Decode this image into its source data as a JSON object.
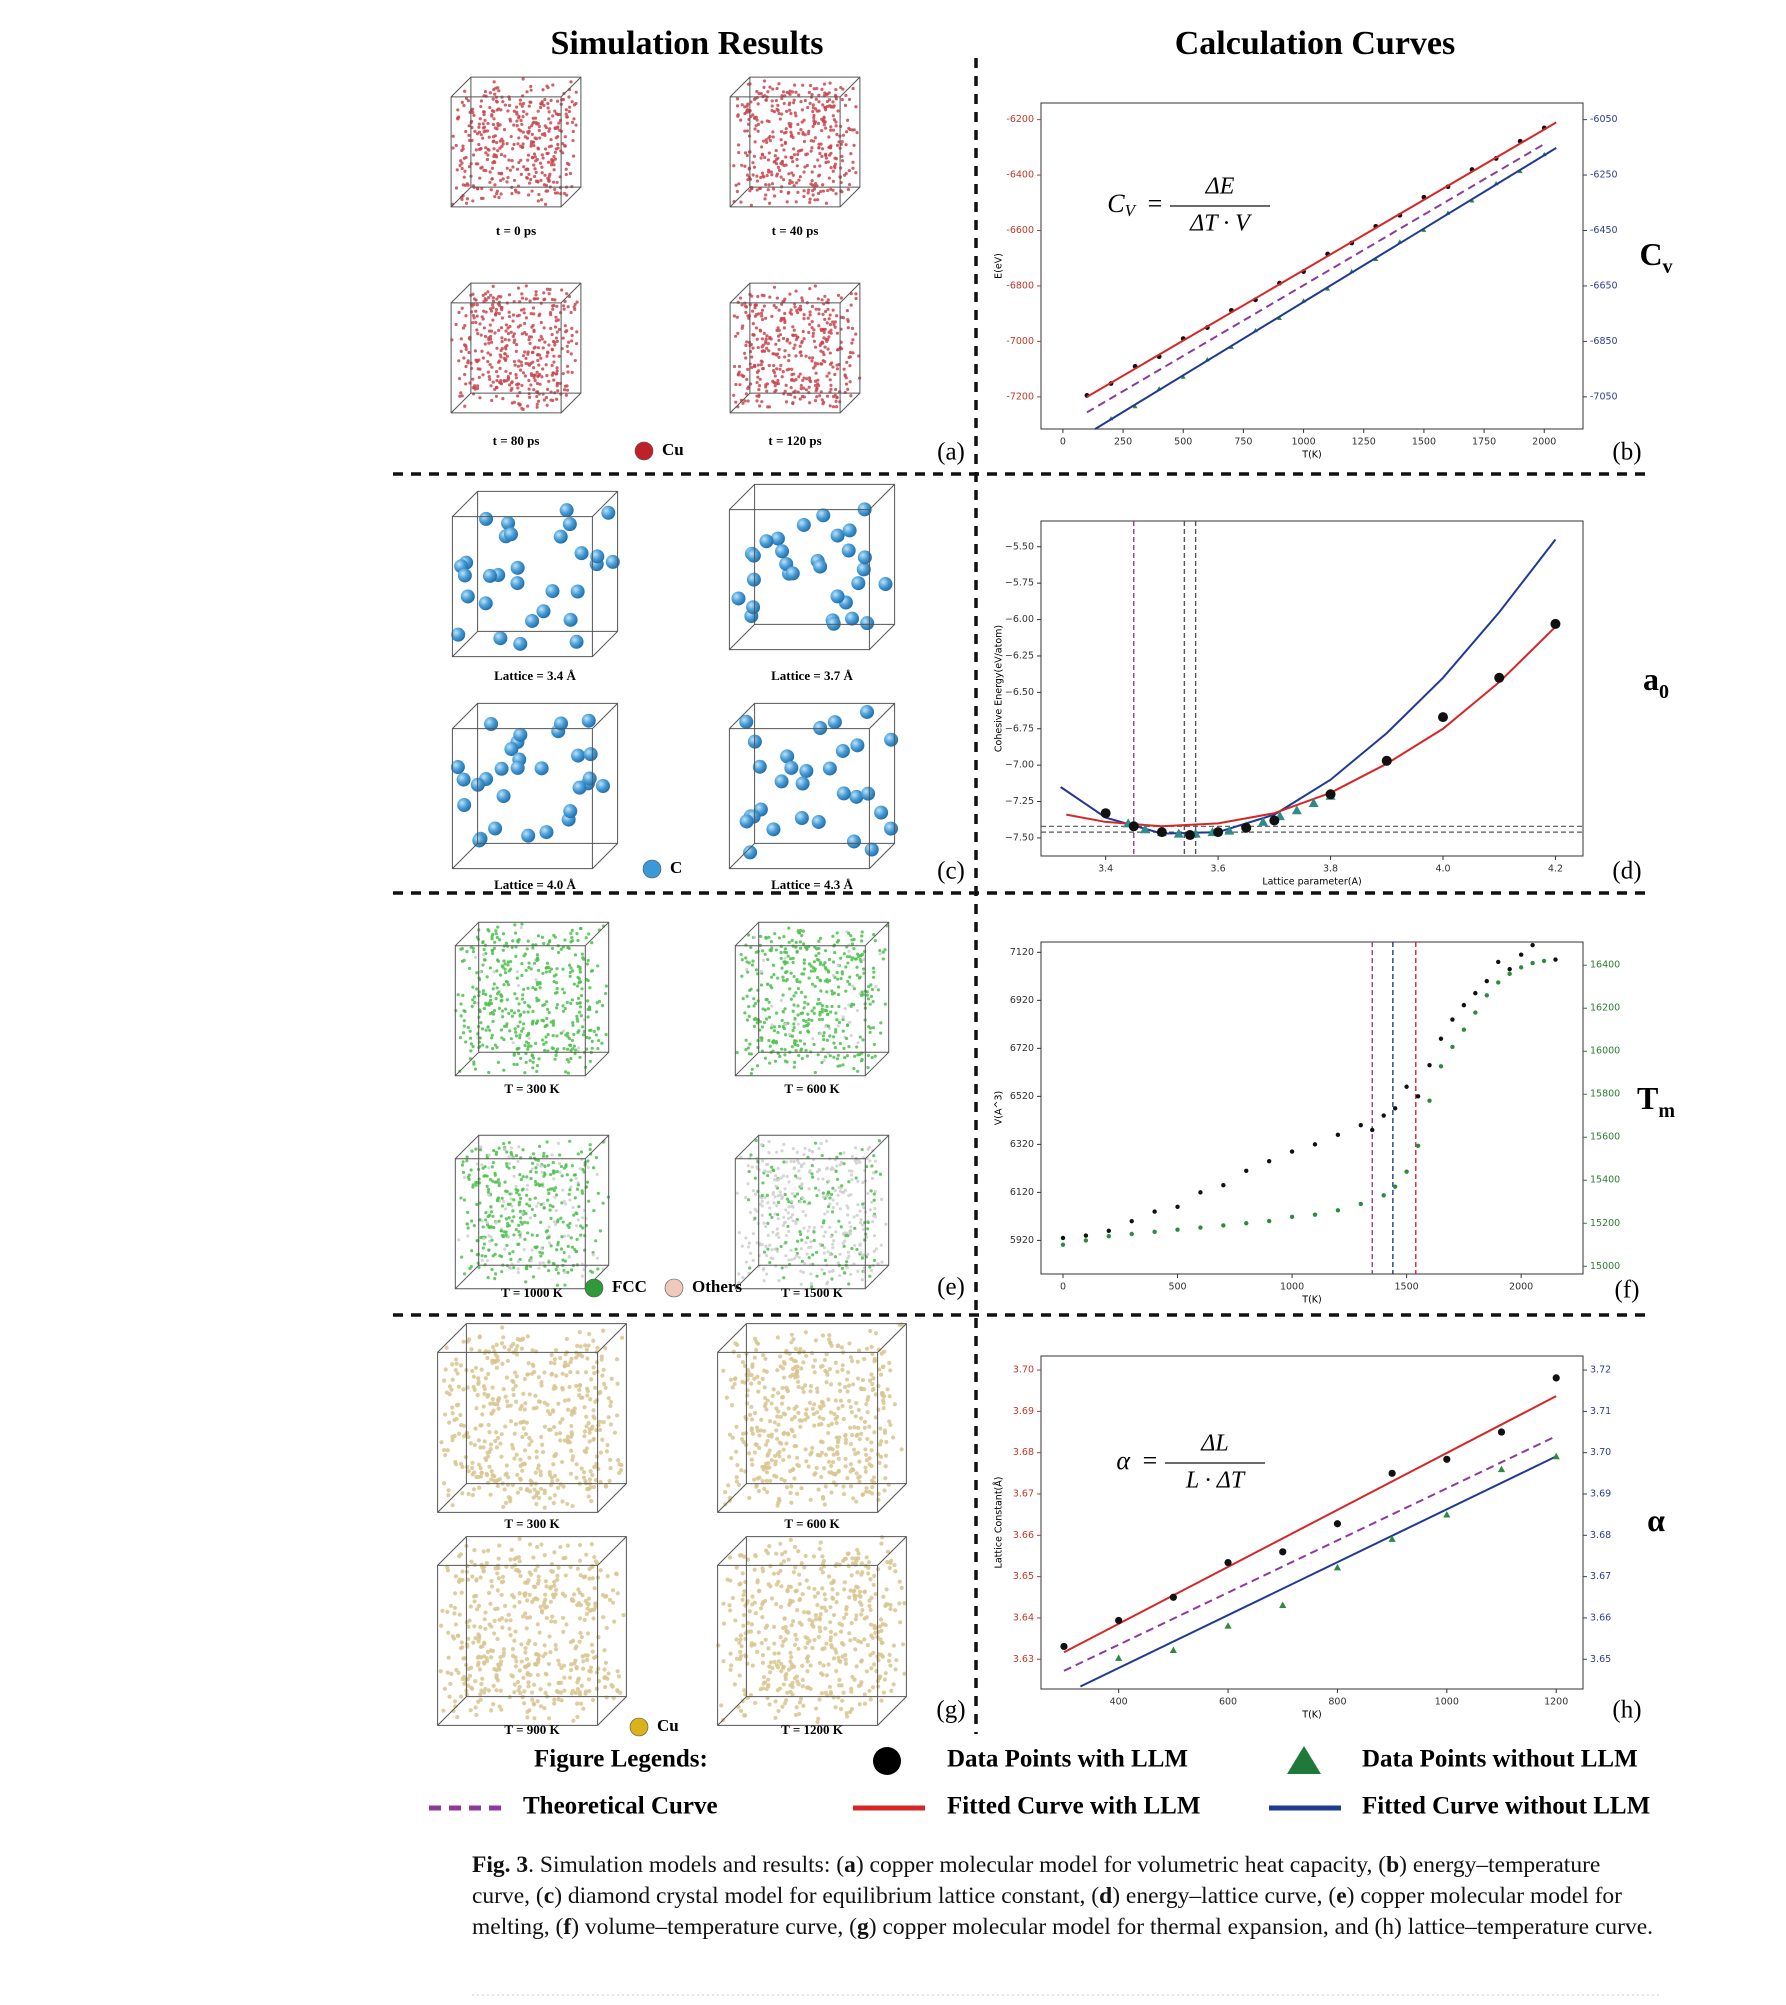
{
  "titles": {
    "left": "Simulation Results",
    "right": "Calculation Curves"
  },
  "sim_panels": [
    {
      "letter": "(a)",
      "color": "#c9474f",
      "cubes": [
        "t = 0 ps",
        "t = 40 ps",
        "t = 80 ps",
        "t = 120 ps"
      ],
      "legend": [
        {
          "label": "Cu",
          "color": "#c0202a"
        }
      ]
    },
    {
      "letter": "(c)",
      "color": "#4a9fd8",
      "cubes": [
        "Lattice = 3.4 Å",
        "Lattice = 3.7 Å",
        "Lattice = 4.0 Å",
        "Lattice = 4.3 Å"
      ],
      "legend": [
        {
          "label": "C",
          "color": "#3a9ad9"
        }
      ]
    },
    {
      "letter": "(e)",
      "color": "#4cbf4c",
      "cubes": [
        "T = 300 K",
        "T = 600 K",
        "T = 1000 K",
        "T = 1500 K"
      ],
      "legend": [
        {
          "label": "FCC",
          "color": "#2f9a3a"
        },
        {
          "label": "Others",
          "color": "#efc9bb"
        }
      ]
    },
    {
      "letter": "(g)",
      "color": "#d8c48e",
      "cubes": [
        "T = 300 K",
        "T = 600 K",
        "T = 900 K",
        "T = 1200 K"
      ],
      "legend": [
        {
          "label": "Cu",
          "color": "#d9b21c"
        }
      ]
    }
  ],
  "chart_data": [
    {
      "type": "scatter",
      "letter": "(b)",
      "xlabel": "T(K)",
      "ylabel": "E(eV)",
      "xlim": [
        -91,
        2161
      ],
      "ylim": [
        -7316,
        -6140
      ],
      "y2lim": [
        -7166,
        -5990
      ],
      "xticks": [
        0,
        250,
        500,
        750,
        1000,
        1250,
        1500,
        1750,
        2000
      ],
      "yticks": [
        -7200,
        -7000,
        -6800,
        -6600,
        -6400,
        -6200
      ],
      "y2ticks": [
        -7050,
        -6850,
        -6650,
        -6450,
        -6250,
        -6050
      ],
      "ytick_color": "#c0392b",
      "y2tick_color": "#2c3e8f",
      "formula": {
        "lhs": "C",
        "sub": "V",
        "num": "ΔE",
        "den": "ΔT · V"
      },
      "series": [
        {
          "marker": "dashed",
          "color": "#8e3a9d",
          "x": [
            100,
            2000
          ],
          "values": [
            -7256,
            -6288
          ]
        },
        {
          "marker": "circle",
          "color": "#111111",
          "x": [
            100,
            200,
            300,
            400,
            500,
            600,
            700,
            800,
            900,
            1000,
            1100,
            1200,
            1300,
            1400,
            1500,
            1600,
            1700,
            1800,
            1900,
            2000
          ],
          "values": [
            -7195,
            -7152,
            -7090,
            -7055,
            -6990,
            -6950,
            -6888,
            -6850,
            -6790,
            -6748,
            -6685,
            -6645,
            -6585,
            -6545,
            -6480,
            -6442,
            -6380,
            -6340,
            -6278,
            -6230
          ]
        },
        {
          "marker": "line",
          "color": "#d62728",
          "x": [
            100,
            2050
          ],
          "values": [
            -7200,
            -6210
          ]
        },
        {
          "marker": "triangle",
          "color": "#2e8b3e",
          "axis": "y2",
          "x": [
            200,
            300,
            400,
            500,
            600,
            700,
            800,
            900,
            1000,
            1100,
            1200,
            1300,
            1400,
            1500,
            1600,
            1700,
            1800,
            1900,
            2000
          ],
          "values": [
            -7128,
            -7084,
            -7020,
            -6978,
            -6915,
            -6870,
            -6810,
            -6766,
            -6703,
            -6660,
            -6597,
            -6553,
            -6490,
            -6448,
            -6386,
            -6342,
            -6280,
            -6236,
            -6175
          ]
        },
        {
          "marker": "line",
          "color": "#1f3a93",
          "axis": "y2",
          "x": [
            134,
            2050
          ],
          "values": [
            -7166,
            -6152
          ]
        }
      ]
    },
    {
      "type": "scatter",
      "letter": "(d)",
      "xlabel": "Lattice parameter(A)",
      "ylabel": "Cohesive Energy(eV/atom)",
      "xlim": [
        3.285,
        4.249
      ],
      "ylim": [
        -7.624,
        -5.323
      ],
      "xticks": [
        3.4,
        3.6,
        3.8,
        {
          "value": 4,
          "label": "4.0"
        },
        4.2
      ],
      "yticks": [
        {
          "value": -7.5,
          "label": "−7.50"
        },
        {
          "value": -7.25,
          "label": "−7.25"
        },
        {
          "value": -7,
          "label": "−7.00"
        },
        {
          "value": -6.75,
          "label": "−6.75"
        },
        {
          "value": -6.5,
          "label": "−6.50"
        },
        {
          "value": -6.25,
          "label": "−6.25"
        },
        {
          "value": -6,
          "label": "−6.00"
        },
        {
          "value": -5.75,
          "label": "−5.75"
        },
        {
          "value": -5.5,
          "label": "−5.50"
        }
      ],
      "vlines": [
        {
          "x": 3.45,
          "color": "#8e3a9d"
        },
        {
          "x": 3.54,
          "color": "#555555"
        },
        {
          "x": 3.56,
          "color": "#555555"
        }
      ],
      "hlines": [
        {
          "y": -7.42,
          "color": "#555555"
        },
        {
          "y": -7.46,
          "color": "#555555"
        }
      ],
      "series": [
        {
          "marker": "line",
          "color": "#1f3a93",
          "x": [
            3.32,
            3.4,
            3.5,
            3.6,
            3.7,
            3.8,
            3.9,
            4.0,
            4.1,
            4.2
          ],
          "values": [
            -7.15,
            -7.36,
            -7.47,
            -7.46,
            -7.34,
            -7.1,
            -6.78,
            -6.4,
            -5.95,
            -5.45
          ]
        },
        {
          "marker": "line",
          "color": "#d62728",
          "x": [
            3.33,
            3.4,
            3.5,
            3.6,
            3.7,
            3.8,
            3.9,
            4.0,
            4.1,
            4.2
          ],
          "values": [
            -7.34,
            -7.39,
            -7.42,
            -7.4,
            -7.33,
            -7.19,
            -6.99,
            -6.75,
            -6.43,
            -6.05
          ]
        },
        {
          "marker": "triangle",
          "color": "#2e8b8b",
          "x": [
            3.44,
            3.47,
            3.5,
            3.53,
            3.56,
            3.59,
            3.62,
            3.65,
            3.68,
            3.71,
            3.74,
            3.77,
            3.8
          ],
          "values": [
            -7.4,
            -7.44,
            -7.46,
            -7.47,
            -7.47,
            -7.46,
            -7.45,
            -7.42,
            -7.39,
            -7.35,
            -7.31,
            -7.26,
            -7.21
          ]
        },
        {
          "marker": "circle",
          "color": "#111111",
          "x": [
            3.4,
            3.45,
            3.5,
            3.55,
            3.6,
            3.65,
            3.7,
            3.8,
            3.9,
            4.0,
            4.1,
            4.2
          ],
          "values": [
            -7.33,
            -7.42,
            -7.46,
            -7.48,
            -7.46,
            -7.43,
            -7.38,
            -7.2,
            -6.97,
            -6.67,
            -6.4,
            -6.03
          ]
        }
      ]
    },
    {
      "type": "scatter",
      "letter": "(f)",
      "xlabel": "T(K)",
      "ylabel": "V(A^3)",
      "xlim": [
        -96,
        2270
      ],
      "ylim": [
        5780,
        7163
      ],
      "y2lim": [
        14964,
        16508
      ],
      "xticks": [
        0,
        500,
        1000,
        1500,
        2000
      ],
      "yticks": [
        5920,
        6120,
        6320,
        6520,
        6720,
        6920,
        7120
      ],
      "y2ticks": [
        15000,
        15200,
        15400,
        15600,
        15800,
        16000,
        16200,
        16400
      ],
      "y2tick_color": "#2e7d32",
      "vlines": [
        {
          "x": 1350,
          "color": "#8e3a9d"
        },
        {
          "x": 1440,
          "color": "#1f3a93"
        },
        {
          "x": 1540,
          "color": "#d62728"
        }
      ],
      "series": [
        {
          "marker": "circle",
          "color": "#111111",
          "x": [
            0,
            100,
            200,
            300,
            400,
            500,
            600,
            700,
            800,
            900,
            1000,
            1100,
            1200,
            1300,
            1350,
            1400,
            1450,
            1500,
            1550,
            1600,
            1650,
            1700,
            1750,
            1800,
            1850,
            1900,
            1950,
            2000,
            2050,
            2150
          ],
          "values": [
            5930,
            5940,
            5960,
            6000,
            6040,
            6060,
            6120,
            6150,
            6210,
            6250,
            6290,
            6320,
            6360,
            6400,
            6380,
            6440,
            6470,
            6560,
            6520,
            6650,
            6760,
            6840,
            6900,
            6950,
            7000,
            7080,
            7050,
            7110,
            7150,
            7090
          ]
        },
        {
          "marker": "circle",
          "color": "#2e8b3e",
          "axis": "y2",
          "x": [
            0,
            100,
            200,
            300,
            400,
            500,
            600,
            700,
            800,
            900,
            1000,
            1100,
            1200,
            1300,
            1400,
            1450,
            1500,
            1550,
            1600,
            1650,
            1700,
            1750,
            1800,
            1850,
            1900,
            1950,
            2000,
            2050,
            2100
          ],
          "values": [
            15100,
            15120,
            15140,
            15150,
            15160,
            15170,
            15180,
            15190,
            15200,
            15210,
            15230,
            15240,
            15260,
            15290,
            15330,
            15370,
            15440,
            15560,
            15770,
            15930,
            16020,
            16100,
            16180,
            16260,
            16320,
            16360,
            16390,
            16410,
            16420
          ]
        }
      ]
    },
    {
      "type": "scatter",
      "letter": "(h)",
      "xlabel": "T(K)",
      "ylabel": "Lattice Constant(Å)",
      "xlim": [
        258,
        1249
      ],
      "ylim": [
        3.6228,
        3.7034
      ],
      "y2lim": [
        3.6428,
        3.7234
      ],
      "xticks": [
        400,
        600,
        800,
        1000,
        1200
      ],
      "yticks": [
        3.63,
        3.64,
        3.65,
        3.66,
        3.67,
        3.68,
        3.69,
        {
          "value": 3.7,
          "label": "3.70"
        }
      ],
      "y2ticks": [
        3.65,
        3.66,
        3.67,
        3.68,
        3.69,
        {
          "value": 3.7,
          "label": "3.70"
        },
        3.71,
        3.72
      ],
      "ytick_color": "#c0392b",
      "y2tick_color": "#2c3e8f",
      "formula": {
        "lhs": "α",
        "num": "ΔL",
        "den": "L · ΔT"
      },
      "series": [
        {
          "marker": "dashed",
          "color": "#8e3a9d",
          "x": [
            300,
            1200
          ],
          "values": [
            3.6272,
            3.684
          ]
        },
        {
          "marker": "line",
          "color": "#d62728",
          "x": [
            300,
            1200
          ],
          "values": [
            3.6317,
            3.6937
          ]
        },
        {
          "marker": "line",
          "color": "#1f3a93",
          "axis": "y2",
          "x": [
            330,
            1200
          ],
          "values": [
            3.6434,
            3.6991
          ]
        },
        {
          "marker": "circle",
          "color": "#111111",
          "x": [
            300,
            400,
            500,
            600,
            700,
            800,
            900,
            1000,
            1100,
            1200
          ],
          "values": [
            3.6331,
            3.6394,
            3.645,
            3.6534,
            3.656,
            3.6628,
            3.675,
            3.6784,
            3.685,
            3.6981
          ]
        },
        {
          "marker": "triangle",
          "color": "#2e8b3e",
          "axis": "y2",
          "x": [
            400,
            500,
            600,
            700,
            800,
            900,
            1000,
            1100,
            1200
          ],
          "values": [
            3.6503,
            3.6522,
            3.6581,
            3.6631,
            3.6722,
            3.6791,
            3.685,
            3.696,
            3.6991
          ]
        }
      ]
    }
  ],
  "side_labels": [
    {
      "main": "C",
      "sub": "v"
    },
    {
      "main": "a",
      "sub": "0"
    },
    {
      "main": "T",
      "sub": "m"
    },
    {
      "main": "α"
    }
  ],
  "legend": {
    "title": "Figure Legends:",
    "items": [
      {
        "label": "Data Points with LLM",
        "marker": "circle",
        "color": "#000000"
      },
      {
        "label": "Data Points without LLM",
        "marker": "triangle",
        "color": "#1f7a3a"
      },
      {
        "label": "Theoretical Curve",
        "marker": "dashed",
        "color": "#8e3a9d"
      },
      {
        "label": "Fitted Curve with LLM",
        "marker": "line",
        "color": "#d62728"
      },
      {
        "label": "Fitted Curve without LLM",
        "marker": "line",
        "color": "#1f3a93"
      }
    ]
  },
  "caption": [
    {
      "text": "Fig. 3",
      "bold": true
    },
    {
      "text": ".  Simulation models and results: ("
    },
    {
      "text": "a",
      "bold": true
    },
    {
      "text": ") copper molecular model for volumetric heat capacity, ("
    },
    {
      "text": "b",
      "bold": true
    },
    {
      "text": ") energy–temperature curve, ("
    },
    {
      "text": "c",
      "bold": true
    },
    {
      "text": ") diamond crystal model for equilibrium lattice constant, ("
    },
    {
      "text": "d",
      "bold": true
    },
    {
      "text": ") energy–lattice curve, ("
    },
    {
      "text": "e",
      "bold": true
    },
    {
      "text": ") copper molecular model for melting, ("
    },
    {
      "text": "f",
      "bold": true
    },
    {
      "text": ") volume–temperature curve, ("
    },
    {
      "text": "g",
      "bold": true
    },
    {
      "text": ") copper molecular model for thermal expansion, and (h) lattice–temperature curve."
    }
  ]
}
